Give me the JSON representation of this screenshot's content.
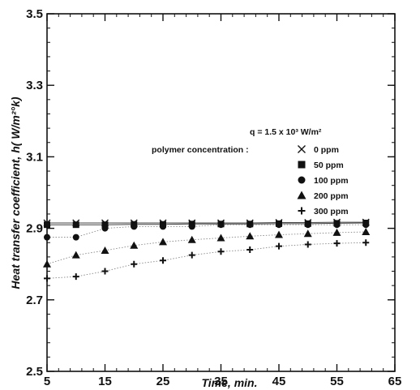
{
  "chart_data": {
    "type": "scatter",
    "xlabel": "Time, min.",
    "ylabel": "Heat transfer coefficient, h( W/m²°k)",
    "xlim": [
      5,
      65
    ],
    "ylim": [
      2.5,
      3.5
    ],
    "xticks": [
      "5",
      "15",
      "25",
      "35",
      "45",
      "55",
      "65"
    ],
    "yticks": [
      "2.5",
      "2.7",
      "2.9",
      "3.1",
      "3.3",
      "3.5"
    ],
    "grid": false,
    "legend_position": "top-right",
    "annotation": "q = 1.5 x 10³ W/m²",
    "legend_title": "polymer concentration :",
    "series": [
      {
        "name": "0 ppm",
        "marker": "x",
        "x": [
          5,
          10,
          15,
          20,
          25,
          30,
          35,
          40,
          45,
          50,
          55,
          60
        ],
        "y": [
          2.915,
          2.915,
          2.915,
          2.915,
          2.915,
          2.915,
          2.915,
          2.915,
          2.916,
          2.916,
          2.917,
          2.917
        ]
      },
      {
        "name": "50 ppm",
        "marker": "square",
        "x": [
          5,
          10,
          15,
          20,
          25,
          30,
          35,
          40,
          45,
          50,
          55,
          60
        ],
        "y": [
          2.91,
          2.91,
          2.91,
          2.911,
          2.911,
          2.912,
          2.912,
          2.912,
          2.913,
          2.913,
          2.914,
          2.915
        ]
      },
      {
        "name": "100 ppm",
        "marker": "circle",
        "x": [
          5,
          10,
          15,
          20,
          25,
          30,
          35,
          40,
          45,
          50,
          55,
          60
        ],
        "y": [
          2.875,
          2.875,
          2.9,
          2.905,
          2.905,
          2.905,
          2.91,
          2.91,
          2.91,
          2.91,
          2.91,
          2.91
        ]
      },
      {
        "name": "200 ppm",
        "marker": "triangle",
        "x": [
          5,
          10,
          15,
          20,
          25,
          30,
          35,
          40,
          45,
          50,
          55,
          60
        ],
        "y": [
          2.8,
          2.825,
          2.838,
          2.852,
          2.862,
          2.868,
          2.873,
          2.878,
          2.882,
          2.885,
          2.888,
          2.89
        ]
      },
      {
        "name": "300 ppm",
        "marker": "plus",
        "x": [
          5,
          10,
          15,
          20,
          25,
          30,
          35,
          40,
          45,
          50,
          55,
          60
        ],
        "y": [
          2.76,
          2.765,
          2.78,
          2.8,
          2.81,
          2.825,
          2.835,
          2.84,
          2.85,
          2.855,
          2.858,
          2.86
        ]
      }
    ]
  }
}
